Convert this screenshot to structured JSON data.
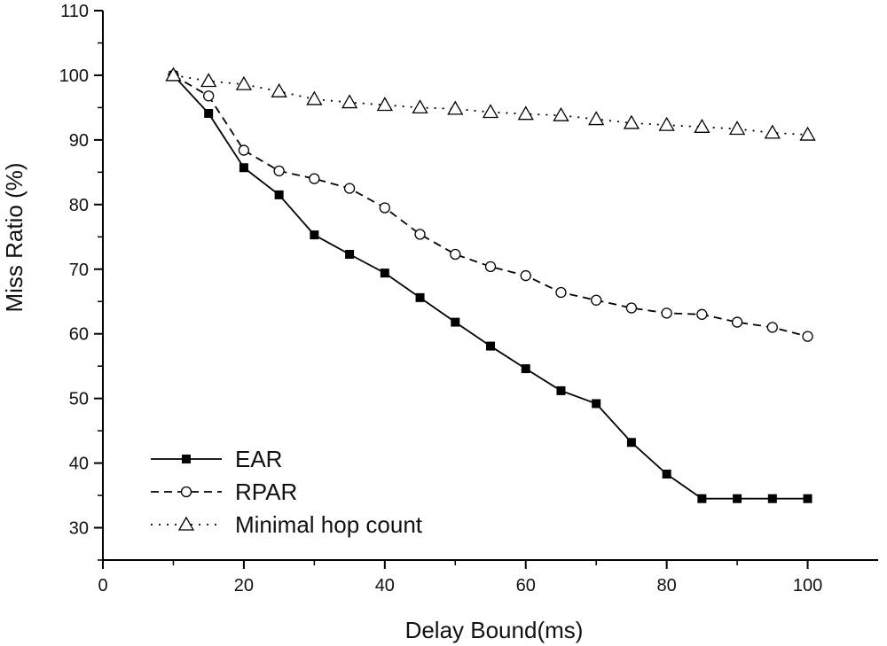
{
  "chart_data": {
    "type": "line",
    "title": "",
    "xlabel": "Delay Bound(ms)",
    "ylabel": "Miss Ratio (%)",
    "xlim": [
      0,
      110
    ],
    "ylim": [
      25,
      110
    ],
    "x_ticks": [
      0,
      20,
      40,
      60,
      80,
      100
    ],
    "y_ticks": [
      30,
      40,
      50,
      60,
      70,
      80,
      90,
      100,
      110
    ],
    "grid": false,
    "legend_position": "bottom-left",
    "x": [
      10,
      15,
      20,
      25,
      30,
      35,
      40,
      45,
      50,
      55,
      60,
      65,
      70,
      75,
      80,
      85,
      90,
      95,
      100
    ],
    "series": [
      {
        "name": "EAR",
        "line_style": "solid",
        "marker": "filled-square",
        "values": [
          100,
          94.1,
          85.7,
          81.5,
          75.3,
          72.3,
          69.4,
          65.6,
          61.8,
          58.1,
          54.6,
          51.2,
          49.2,
          43.2,
          38.3,
          34.5,
          34.5,
          34.5,
          34.5
        ]
      },
      {
        "name": "RPAR",
        "line_style": "dashed",
        "marker": "open-circle",
        "values": [
          100,
          96.8,
          88.4,
          85.2,
          84.0,
          82.5,
          79.5,
          75.4,
          72.3,
          70.4,
          69.0,
          66.4,
          65.2,
          64.0,
          63.2,
          63.0,
          61.8,
          61.0,
          59.6
        ]
      },
      {
        "name": "Minimal hop count",
        "line_style": "dotted",
        "marker": "open-triangle",
        "values": [
          100,
          99.1,
          98.6,
          97.5,
          96.3,
          95.8,
          95.4,
          95.0,
          94.8,
          94.3,
          94.0,
          93.8,
          93.2,
          92.6,
          92.3,
          92.0,
          91.7,
          91.1,
          90.8
        ]
      }
    ]
  }
}
